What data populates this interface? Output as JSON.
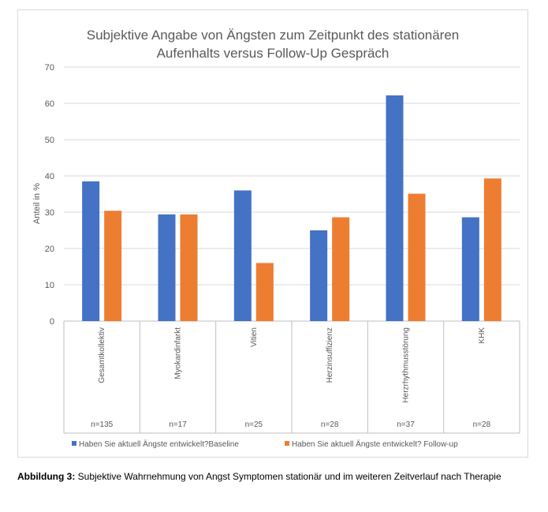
{
  "chart_data": {
    "type": "bar",
    "title_line1": "Subjektive Angabe von Ängsten zum Zeitpunkt des stationären",
    "title_line2": "Aufenhalts versus Follow-Up Gespräch",
    "ylabel": "Anteil in %",
    "ylim": [
      0,
      70
    ],
    "yticks": [
      "0",
      "10",
      "20",
      "30",
      "40",
      "50",
      "60",
      "70"
    ],
    "grid": true,
    "legend_position": "bottom",
    "categories": [
      "Gesamtkollektiv",
      "Myokardinfarkt",
      "Vitien",
      "Herzinsuffizienz",
      "Herzrhythmusstörung",
      "KHK"
    ],
    "sample_sizes": [
      "n=135",
      "n=17",
      "n=25",
      "n=28",
      "n=37",
      "n=28"
    ],
    "series": [
      {
        "name": "Haben Sie aktuell  Ängste entwickelt?Baseline",
        "color": "#4472c4",
        "values": [
          38.5,
          29.4,
          36.0,
          25.0,
          62.2,
          28.6
        ]
      },
      {
        "name": "Haben Sie aktuell  Ängste entwickelt? Follow-up",
        "color": "#ed7d31",
        "values": [
          30.4,
          29.4,
          16.0,
          28.6,
          35.1,
          39.3
        ]
      }
    ]
  },
  "caption": {
    "label": "Abbildung 3:",
    "text": " Subjektive Wahrnehmung von Angst Symptomen stationär und im weiteren Zeitverlauf nach Therapie"
  }
}
